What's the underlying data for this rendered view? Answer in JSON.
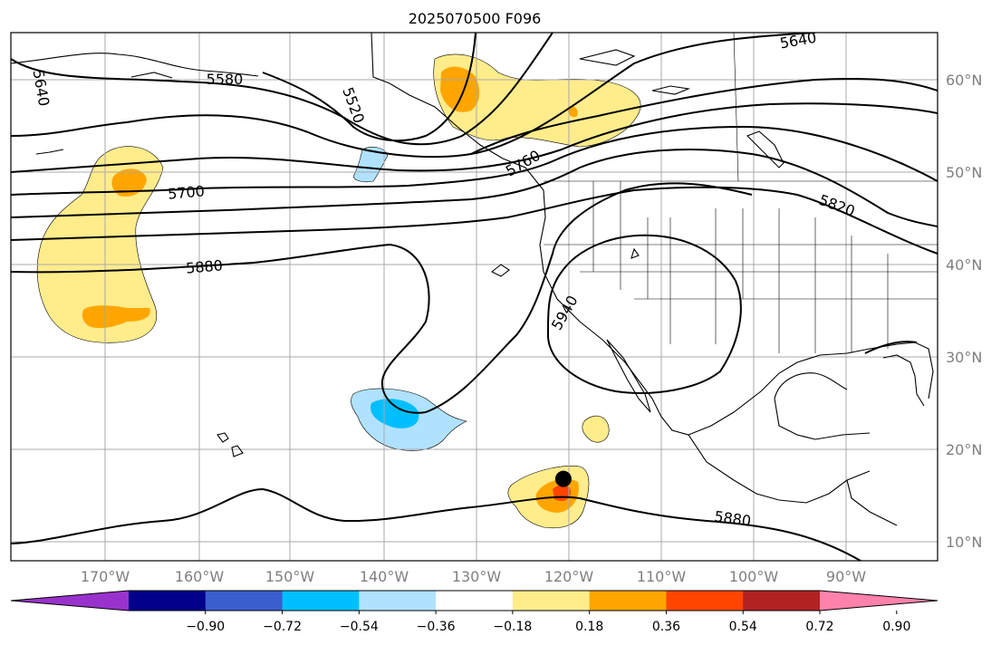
{
  "title": "2025070500 F096",
  "chart_data": {
    "type": "map",
    "projection": "plate-carree",
    "lon_range": [
      -180,
      -82
    ],
    "lat_range": [
      8,
      65
    ],
    "lon_ticks": [
      {
        "lon": -170,
        "label": "170°W"
      },
      {
        "lon": -160,
        "label": "160°W"
      },
      {
        "lon": -150,
        "label": "150°W"
      },
      {
        "lon": -140,
        "label": "140°W"
      },
      {
        "lon": -130,
        "label": "130°W"
      },
      {
        "lon": -120,
        "label": "120°W"
      },
      {
        "lon": -110,
        "label": "110°W"
      },
      {
        "lon": -100,
        "label": "100°W"
      },
      {
        "lon": -90,
        "label": "90°W"
      }
    ],
    "lat_ticks": [
      {
        "lat": 60,
        "label": "60°N"
      },
      {
        "lat": 50,
        "label": "50°N"
      },
      {
        "lat": 40,
        "label": "40°N"
      },
      {
        "lat": 30,
        "label": "30°N"
      },
      {
        "lat": 20,
        "label": "20°N"
      },
      {
        "lat": 10,
        "label": "10°N"
      }
    ],
    "grid": true,
    "contour_labels": [
      "5580",
      "5520",
      "5640",
      "5640",
      "5700",
      "5760",
      "5820",
      "5880",
      "5940",
      "5880"
    ],
    "marker": {
      "lon": -120.5,
      "lat": 16.8,
      "color": "#000000"
    },
    "colorbar": {
      "orientation": "horizontal",
      "extend": "both",
      "colors": [
        "#9932cc",
        "#00008b",
        "#3a5fcd",
        "#00bfff",
        "#b0e2ff",
        "#ffffff",
        "#ffec8b",
        "#ffa500",
        "#ff4500",
        "#b22222",
        "#ff82ab"
      ],
      "ticks": [
        "−0.90",
        "−0.72",
        "−0.54",
        "−0.36",
        "−0.18",
        "0.18",
        "0.36",
        "0.54",
        "0.72",
        "0.90"
      ]
    }
  }
}
